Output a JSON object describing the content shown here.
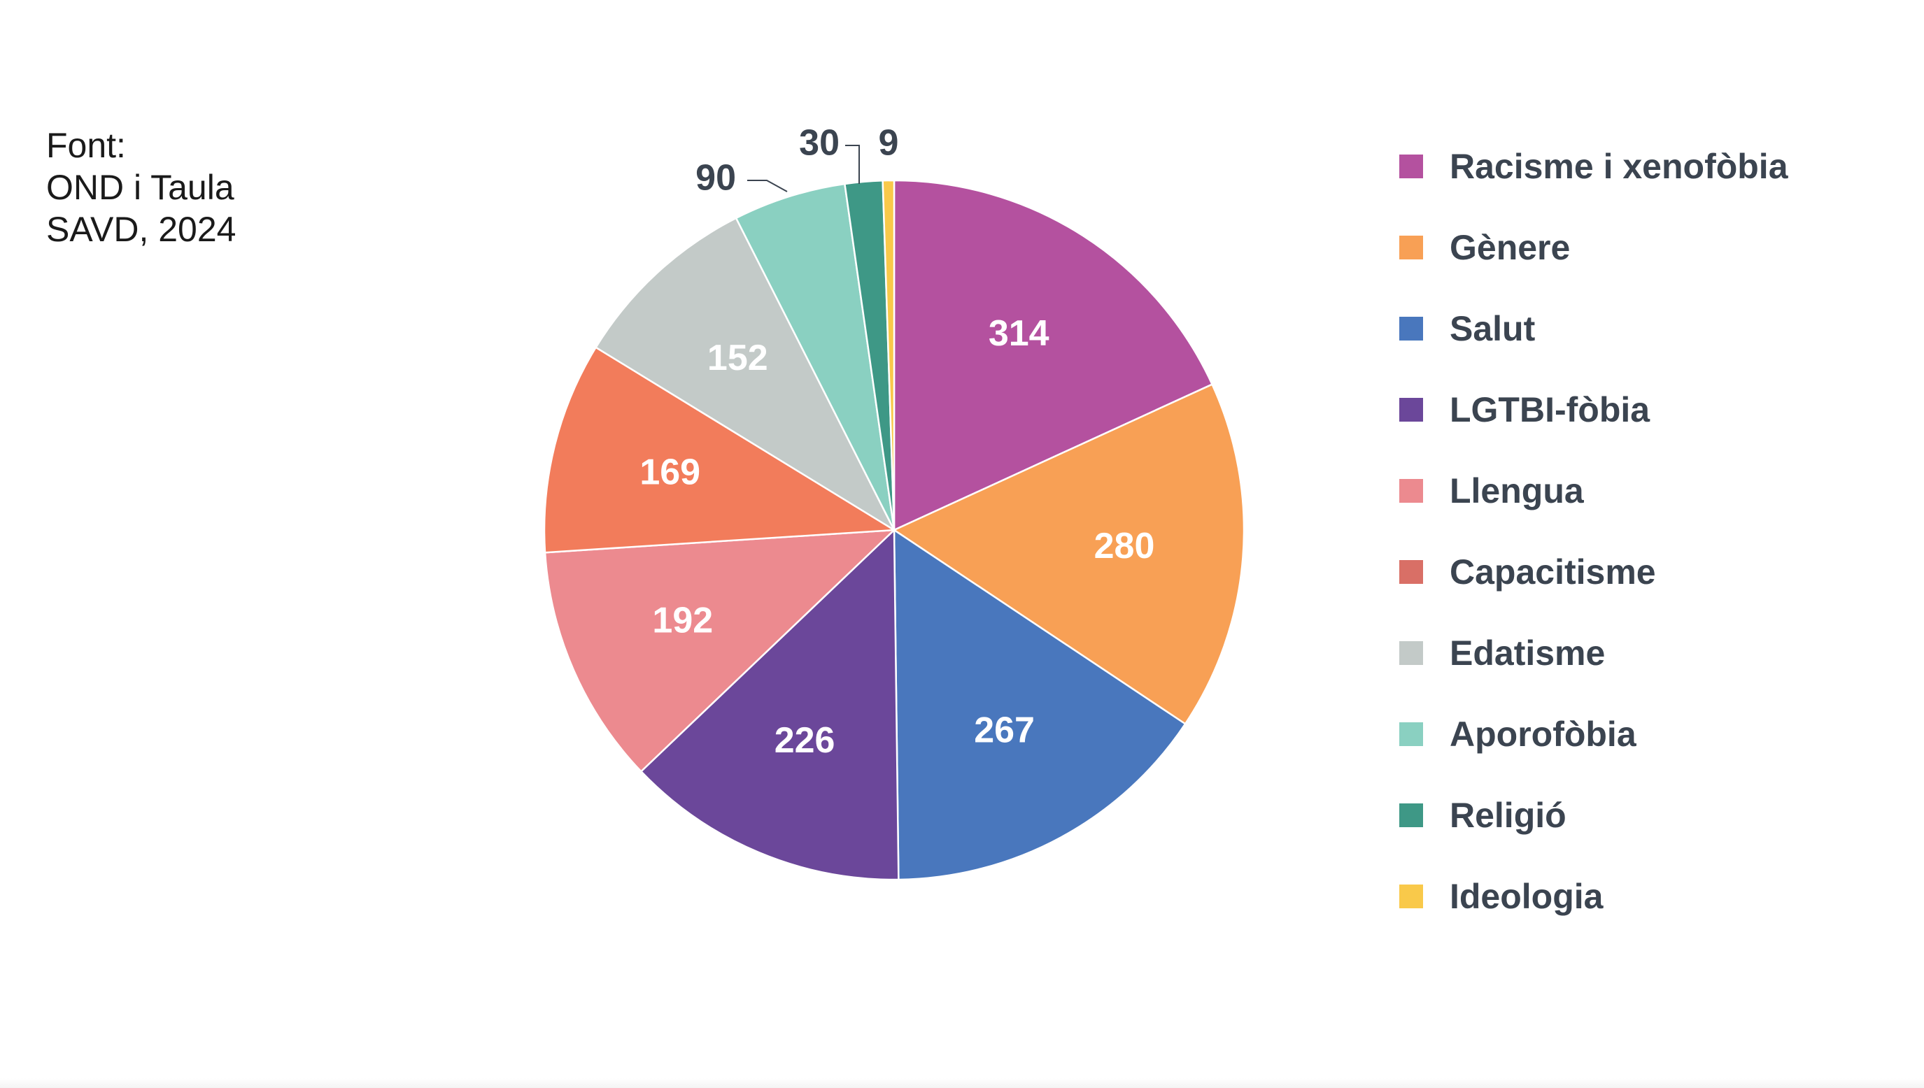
{
  "source_note": [
    "Font:",
    "OND i Taula",
    "SAVD, 2024"
  ],
  "chart_data": {
    "type": "pie",
    "title": "",
    "categories": [
      "Racisme i xenofòbia",
      "Gènere",
      "Salut",
      "LGTBI-fòbia",
      "Llengua",
      "Capacitisme",
      "Edatisme",
      "Aporofòbia",
      "Religió",
      "Ideologia"
    ],
    "values": [
      314,
      280,
      267,
      226,
      192,
      169,
      152,
      90,
      30,
      9
    ],
    "data_labels": [
      "314",
      "280",
      "267",
      "226",
      "192",
      "169",
      "152",
      "90",
      "30",
      "9"
    ],
    "colors": [
      "#b4519f",
      "#f8a055",
      "#4977bd",
      "#6b479a",
      "#ec8a8f",
      "#f27c5b",
      "#c3cac8",
      "#8ad0c1",
      "#3e9886",
      "#f9c94a"
    ],
    "legend_colors": [
      "#b4519f",
      "#f8a055",
      "#4977bd",
      "#6b479a",
      "#ec8a8f",
      "#d96f66",
      "#c3cac8",
      "#8ad0c1",
      "#3e9886",
      "#f9c94a"
    ],
    "legend": "right",
    "start_angle": "12 o'clock, clockwise"
  }
}
